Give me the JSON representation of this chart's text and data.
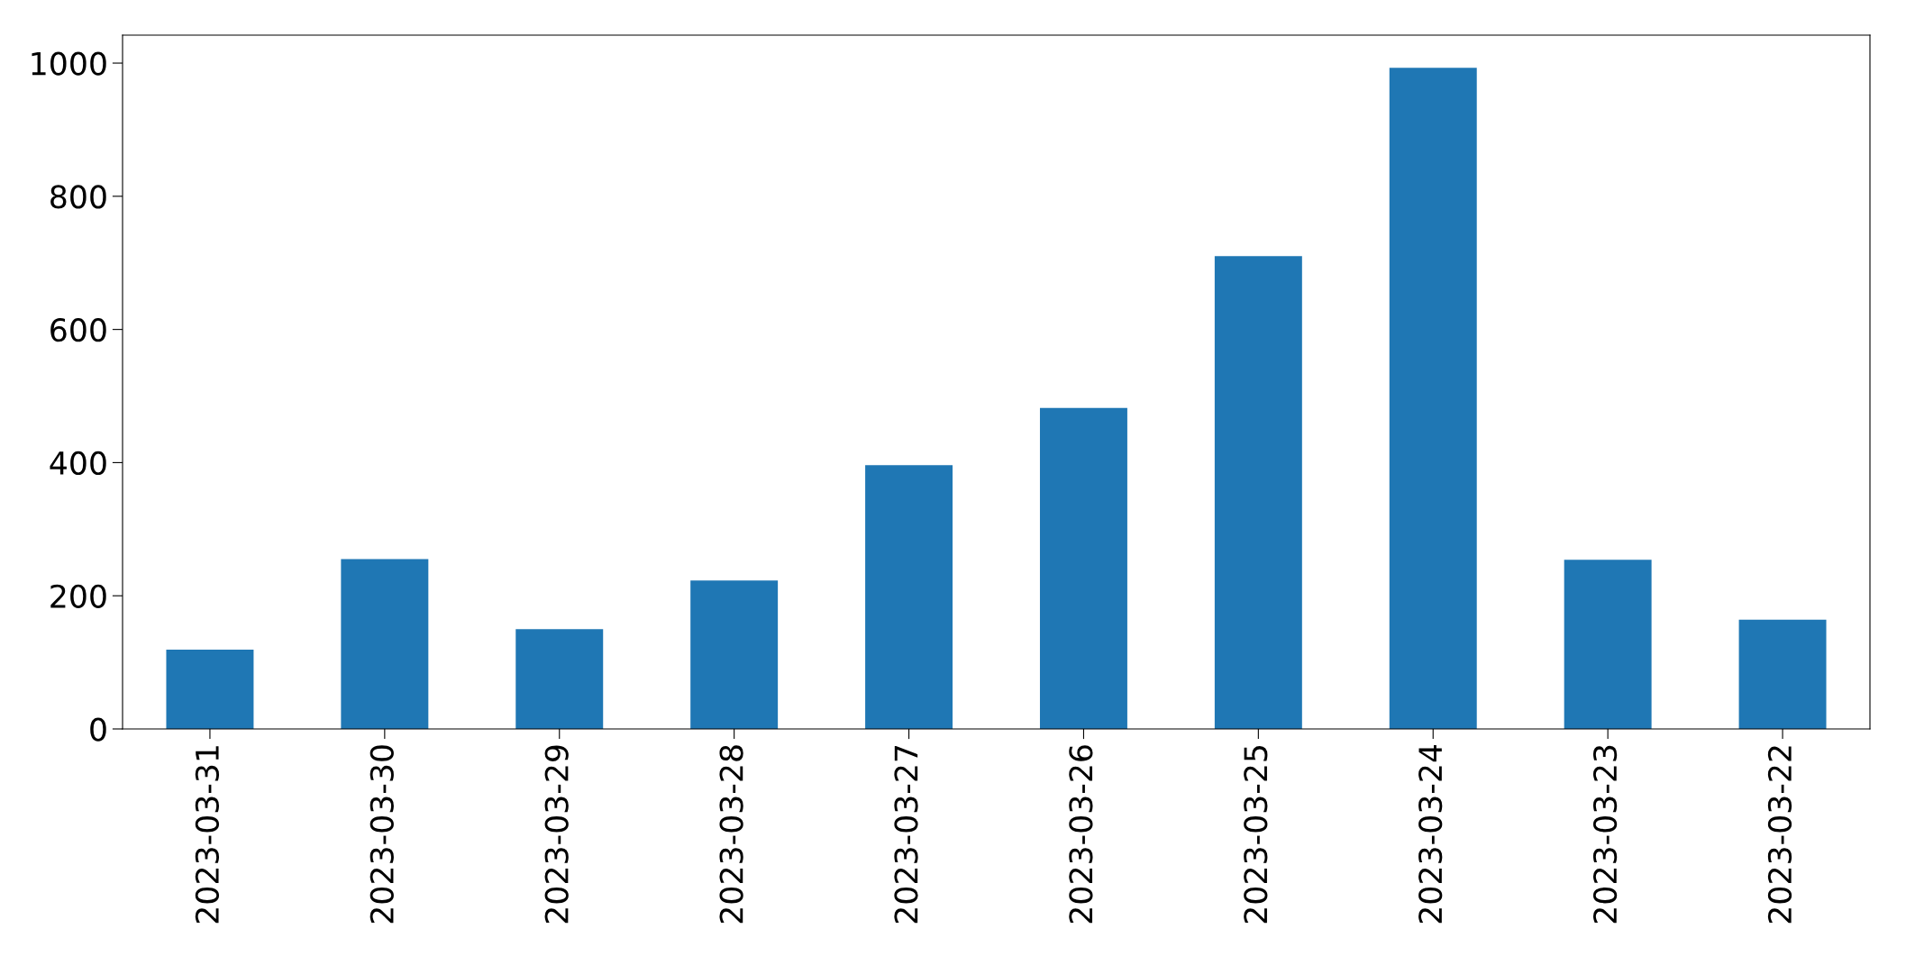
{
  "chart_data": {
    "type": "bar",
    "categories": [
      "2023-03-31",
      "2023-03-30",
      "2023-03-29",
      "2023-03-28",
      "2023-03-27",
      "2023-03-26",
      "2023-03-25",
      "2023-03-24",
      "2023-03-23",
      "2023-03-22"
    ],
    "values": [
      119,
      255,
      150,
      223,
      396,
      482,
      710,
      993,
      254,
      164
    ],
    "color": "#1f77b4",
    "ylim": [
      0,
      1042
    ],
    "yticks": [
      0,
      200,
      400,
      600,
      800,
      1000
    ],
    "grid": false,
    "legend": false
  }
}
